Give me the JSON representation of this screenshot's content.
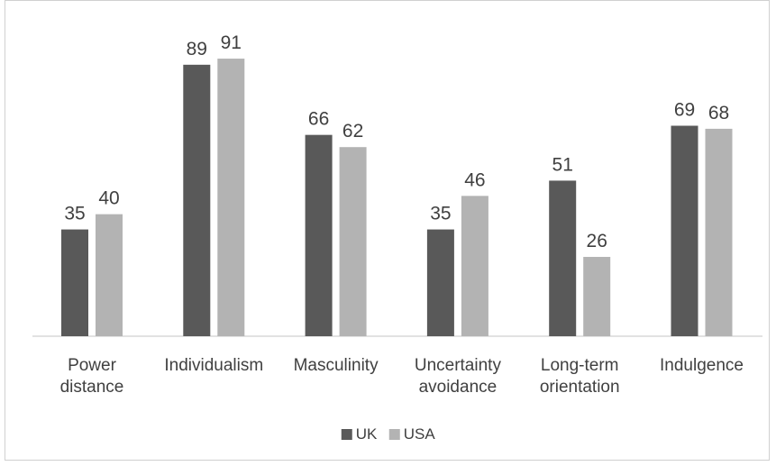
{
  "chart_data": {
    "type": "bar",
    "title": "",
    "xlabel": "",
    "ylabel": "",
    "ylim": [
      0,
      100
    ],
    "grid": false,
    "legend_position": "bottom",
    "categories": [
      [
        "Power",
        "distance"
      ],
      [
        "Individualism"
      ],
      [
        "Masculinity"
      ],
      [
        "Uncertainty",
        "avoidance"
      ],
      [
        "Long-term",
        "orientation"
      ],
      [
        "Indulgence"
      ]
    ],
    "series": [
      {
        "name": "UK",
        "color": "#595959",
        "values": [
          35,
          89,
          66,
          35,
          51,
          69
        ]
      },
      {
        "name": "USA",
        "color": "#b3b3b3",
        "values": [
          40,
          91,
          62,
          46,
          26,
          68
        ]
      }
    ]
  }
}
